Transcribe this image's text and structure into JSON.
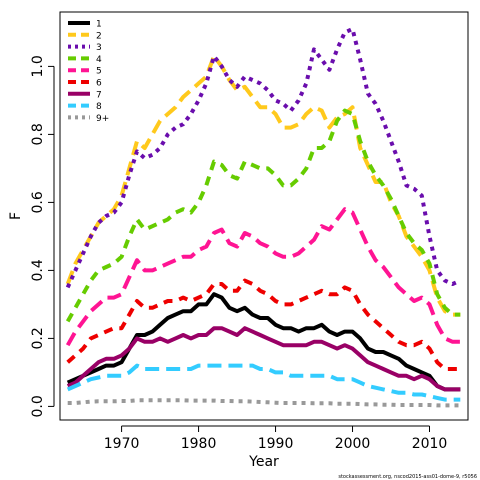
{
  "chart_data": {
    "type": "line",
    "xlabel": "Year",
    "ylabel": "F",
    "xlim": [
      1962,
      2015
    ],
    "ylim": [
      -0.04,
      1.16
    ],
    "xticks": [
      1970,
      1980,
      1990,
      2000,
      2010
    ],
    "yticks": [
      0.0,
      0.2,
      0.4,
      0.6,
      0.8,
      1.0
    ],
    "grid": false,
    "legend_position": "top-left",
    "footnote": "stockassessment.org, nscod2015-ass01-dome-9, r5056",
    "x": [
      1963,
      1964,
      1965,
      1966,
      1967,
      1968,
      1969,
      1970,
      1971,
      1972,
      1973,
      1974,
      1975,
      1976,
      1977,
      1978,
      1979,
      1980,
      1981,
      1982,
      1983,
      1984,
      1985,
      1986,
      1987,
      1988,
      1989,
      1990,
      1991,
      1992,
      1993,
      1994,
      1995,
      1996,
      1997,
      1998,
      1999,
      2000,
      2001,
      2002,
      2003,
      2004,
      2005,
      2006,
      2007,
      2008,
      2009,
      2010,
      2011,
      2012,
      2013,
      2014
    ],
    "series": [
      {
        "name": "1",
        "color": "#000000",
        "dash": "solid",
        "values": [
          0.07,
          0.08,
          0.09,
          0.1,
          0.11,
          0.12,
          0.12,
          0.13,
          0.17,
          0.21,
          0.21,
          0.22,
          0.24,
          0.26,
          0.27,
          0.28,
          0.28,
          0.3,
          0.3,
          0.33,
          0.32,
          0.29,
          0.28,
          0.29,
          0.27,
          0.26,
          0.26,
          0.24,
          0.23,
          0.23,
          0.22,
          0.23,
          0.23,
          0.24,
          0.22,
          0.21,
          0.22,
          0.22,
          0.2,
          0.17,
          0.16,
          0.16,
          0.15,
          0.14,
          0.12,
          0.11,
          0.1,
          0.09,
          0.06,
          0.05,
          0.05,
          0.05
        ]
      },
      {
        "name": "2",
        "color": "#FFC91C",
        "dash": "long",
        "values": [
          0.36,
          0.42,
          0.46,
          0.5,
          0.54,
          0.56,
          0.58,
          0.62,
          0.7,
          0.78,
          0.76,
          0.8,
          0.84,
          0.86,
          0.88,
          0.91,
          0.93,
          0.95,
          0.97,
          1.03,
          1.0,
          0.96,
          0.93,
          0.94,
          0.91,
          0.88,
          0.88,
          0.86,
          0.82,
          0.82,
          0.83,
          0.86,
          0.88,
          0.87,
          0.82,
          0.85,
          0.86,
          0.88,
          0.76,
          0.71,
          0.66,
          0.66,
          0.6,
          0.56,
          0.5,
          0.47,
          0.44,
          0.4,
          0.32,
          0.28,
          0.27,
          0.27
        ]
      },
      {
        "name": "3",
        "color": "#6A0DAD",
        "dash": "dot",
        "values": [
          0.35,
          0.4,
          0.45,
          0.5,
          0.54,
          0.56,
          0.57,
          0.6,
          0.68,
          0.75,
          0.73,
          0.74,
          0.76,
          0.8,
          0.82,
          0.83,
          0.86,
          0.9,
          0.95,
          1.03,
          1.0,
          0.96,
          0.94,
          0.97,
          0.96,
          0.95,
          0.93,
          0.9,
          0.89,
          0.87,
          0.9,
          0.95,
          1.05,
          1.02,
          0.99,
          1.05,
          1.1,
          1.11,
          1.02,
          0.92,
          0.89,
          0.84,
          0.78,
          0.72,
          0.65,
          0.64,
          0.62,
          0.5,
          0.4,
          0.37,
          0.36,
          0.37
        ]
      },
      {
        "name": "4",
        "color": "#66CC00",
        "dash": "medium",
        "values": [
          0.25,
          0.29,
          0.33,
          0.37,
          0.4,
          0.41,
          0.42,
          0.44,
          0.5,
          0.55,
          0.52,
          0.53,
          0.54,
          0.55,
          0.57,
          0.58,
          0.57,
          0.6,
          0.65,
          0.72,
          0.71,
          0.68,
          0.67,
          0.72,
          0.71,
          0.7,
          0.7,
          0.68,
          0.65,
          0.65,
          0.67,
          0.7,
          0.76,
          0.76,
          0.78,
          0.84,
          0.87,
          0.86,
          0.78,
          0.72,
          0.68,
          0.65,
          0.61,
          0.56,
          0.51,
          0.48,
          0.46,
          0.42,
          0.33,
          0.29,
          0.27,
          0.27
        ]
      },
      {
        "name": "5",
        "color": "#FF1493",
        "dash": "long",
        "values": [
          0.18,
          0.22,
          0.25,
          0.28,
          0.3,
          0.32,
          0.32,
          0.33,
          0.38,
          0.43,
          0.4,
          0.4,
          0.41,
          0.42,
          0.43,
          0.44,
          0.44,
          0.46,
          0.47,
          0.51,
          0.52,
          0.48,
          0.47,
          0.51,
          0.5,
          0.48,
          0.47,
          0.45,
          0.44,
          0.44,
          0.45,
          0.47,
          0.49,
          0.53,
          0.52,
          0.55,
          0.58,
          0.57,
          0.52,
          0.47,
          0.43,
          0.41,
          0.38,
          0.35,
          0.33,
          0.31,
          0.32,
          0.3,
          0.24,
          0.2,
          0.19,
          0.19
        ]
      },
      {
        "name": "6",
        "color": "#EE0000",
        "dash": "medium",
        "values": [
          0.13,
          0.15,
          0.17,
          0.2,
          0.21,
          0.22,
          0.23,
          0.23,
          0.27,
          0.31,
          0.29,
          0.29,
          0.3,
          0.31,
          0.31,
          0.32,
          0.31,
          0.32,
          0.33,
          0.36,
          0.36,
          0.34,
          0.34,
          0.37,
          0.36,
          0.34,
          0.33,
          0.31,
          0.3,
          0.3,
          0.31,
          0.32,
          0.33,
          0.34,
          0.33,
          0.33,
          0.35,
          0.34,
          0.3,
          0.27,
          0.25,
          0.23,
          0.21,
          0.19,
          0.18,
          0.18,
          0.19,
          0.17,
          0.13,
          0.11,
          0.11,
          0.11
        ]
      },
      {
        "name": "7",
        "color": "#990066",
        "dash": "solid",
        "values": [
          0.06,
          0.07,
          0.09,
          0.11,
          0.13,
          0.14,
          0.14,
          0.15,
          0.17,
          0.2,
          0.19,
          0.19,
          0.2,
          0.19,
          0.2,
          0.21,
          0.2,
          0.21,
          0.21,
          0.23,
          0.23,
          0.22,
          0.21,
          0.23,
          0.22,
          0.21,
          0.2,
          0.19,
          0.18,
          0.18,
          0.18,
          0.18,
          0.19,
          0.19,
          0.18,
          0.17,
          0.18,
          0.17,
          0.15,
          0.13,
          0.12,
          0.11,
          0.1,
          0.09,
          0.09,
          0.08,
          0.09,
          0.08,
          0.06,
          0.05,
          0.05,
          0.05
        ]
      },
      {
        "name": "8",
        "color": "#33CCFF",
        "dash": "long",
        "values": [
          0.05,
          0.06,
          0.07,
          0.08,
          0.085,
          0.09,
          0.09,
          0.09,
          0.1,
          0.12,
          0.11,
          0.11,
          0.11,
          0.11,
          0.11,
          0.11,
          0.11,
          0.12,
          0.12,
          0.12,
          0.12,
          0.12,
          0.12,
          0.12,
          0.12,
          0.11,
          0.11,
          0.1,
          0.1,
          0.09,
          0.09,
          0.09,
          0.09,
          0.09,
          0.09,
          0.08,
          0.08,
          0.08,
          0.07,
          0.06,
          0.055,
          0.05,
          0.045,
          0.04,
          0.04,
          0.035,
          0.035,
          0.03,
          0.025,
          0.02,
          0.02,
          0.02
        ]
      },
      {
        "name": "9+",
        "color": "#999999",
        "dash": "dot",
        "values": [
          0.01,
          0.01,
          0.012,
          0.014,
          0.015,
          0.015,
          0.015,
          0.016,
          0.016,
          0.018,
          0.018,
          0.018,
          0.018,
          0.018,
          0.018,
          0.018,
          0.017,
          0.017,
          0.017,
          0.017,
          0.016,
          0.016,
          0.015,
          0.015,
          0.014,
          0.013,
          0.012,
          0.011,
          0.01,
          0.01,
          0.01,
          0.01,
          0.009,
          0.009,
          0.009,
          0.008,
          0.008,
          0.008,
          0.007,
          0.006,
          0.006,
          0.005,
          0.005,
          0.004,
          0.004,
          0.004,
          0.004,
          0.004,
          0.003,
          0.003,
          0.003,
          0.003
        ]
      }
    ]
  }
}
